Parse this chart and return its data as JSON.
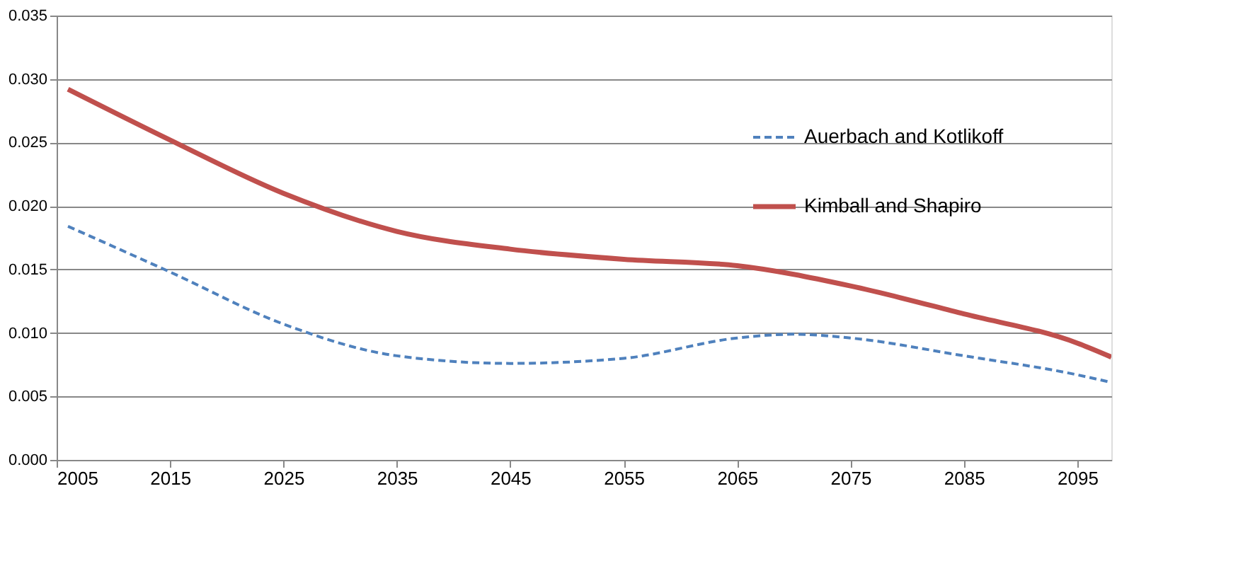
{
  "chart_data": {
    "type": "line",
    "x": [
      2006,
      2015,
      2025,
      2035,
      2045,
      2055,
      2065,
      2075,
      2085,
      2095,
      2098
    ],
    "series": [
      {
        "name": "Auerbach and Kotlikoff",
        "color": "#4f81bd",
        "line_style": "dashed",
        "x": [
          2006,
          2015,
          2025,
          2035,
          2045,
          2055,
          2065,
          2070,
          2075,
          2085,
          2095,
          2098
        ],
        "values": [
          0.0184,
          0.0148,
          0.0107,
          0.0082,
          0.0076,
          0.008,
          0.0096,
          0.0099,
          0.0096,
          0.0082,
          0.0067,
          0.0061
        ]
      },
      {
        "name": "Kimball and Shapiro",
        "color": "#c0504d",
        "line_style": "solid",
        "values": [
          0.0292,
          0.0252,
          0.021,
          0.018,
          0.0166,
          0.0158,
          0.0153,
          0.0137,
          0.0115,
          0.0092,
          0.0081
        ]
      }
    ],
    "xlim": [
      2005,
      2098
    ],
    "xticks": [
      2005,
      2015,
      2025,
      2035,
      2045,
      2055,
      2065,
      2075,
      2085,
      2095
    ],
    "ylim": [
      0,
      0.035
    ],
    "yticks": [
      {
        "value": 0,
        "label": "0.000"
      },
      {
        "value": 0.005,
        "label": "0.005"
      },
      {
        "value": 0.01,
        "label": "0.010"
      },
      {
        "value": 0.015,
        "label": "0.015"
      },
      {
        "value": 0.02,
        "label": "0.020"
      },
      {
        "value": 0.025,
        "label": "0.025"
      },
      {
        "value": 0.03,
        "label": "0.030"
      },
      {
        "value": 0.035,
        "label": "0.035"
      }
    ],
    "grid": "y",
    "legend": "top right",
    "marker": "none"
  }
}
